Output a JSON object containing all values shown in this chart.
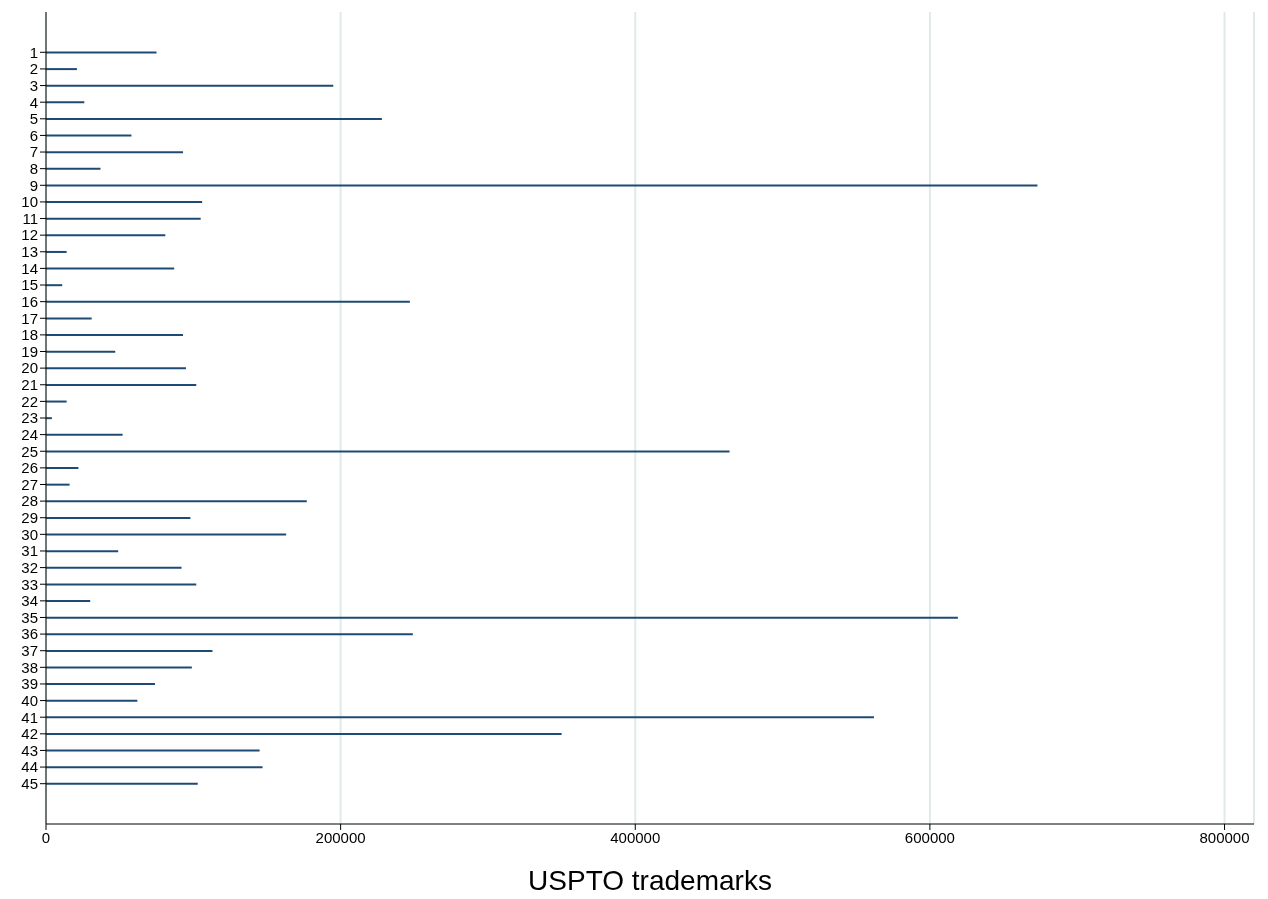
{
  "chart_data": {
    "type": "bar",
    "orientation": "horizontal",
    "xlabel": "USPTO trademarks",
    "categories": [
      "1",
      "2",
      "3",
      "4",
      "5",
      "6",
      "7",
      "8",
      "9",
      "10",
      "11",
      "12",
      "13",
      "14",
      "15",
      "16",
      "17",
      "18",
      "19",
      "20",
      "21",
      "22",
      "23",
      "24",
      "25",
      "26",
      "27",
      "28",
      "29",
      "30",
      "31",
      "32",
      "33",
      "34",
      "35",
      "36",
      "37",
      "38",
      "39",
      "40",
      "41",
      "42",
      "43",
      "44",
      "45"
    ],
    "values": [
      75000,
      21000,
      195000,
      26000,
      228000,
      58000,
      93000,
      37000,
      673000,
      106000,
      105000,
      81000,
      14000,
      87000,
      11000,
      247000,
      31000,
      93000,
      47000,
      95000,
      102000,
      14000,
      4000,
      52000,
      464000,
      22000,
      16000,
      177000,
      98000,
      163000,
      49000,
      92000,
      102000,
      30000,
      619000,
      249000,
      113000,
      99000,
      74000,
      62000,
      562000,
      350000,
      145000,
      147000,
      103000
    ],
    "color": "#1f4a73",
    "xlim": [
      0,
      820000
    ],
    "xticks": [
      0,
      200000,
      400000,
      600000,
      800000
    ],
    "grid": "x"
  }
}
